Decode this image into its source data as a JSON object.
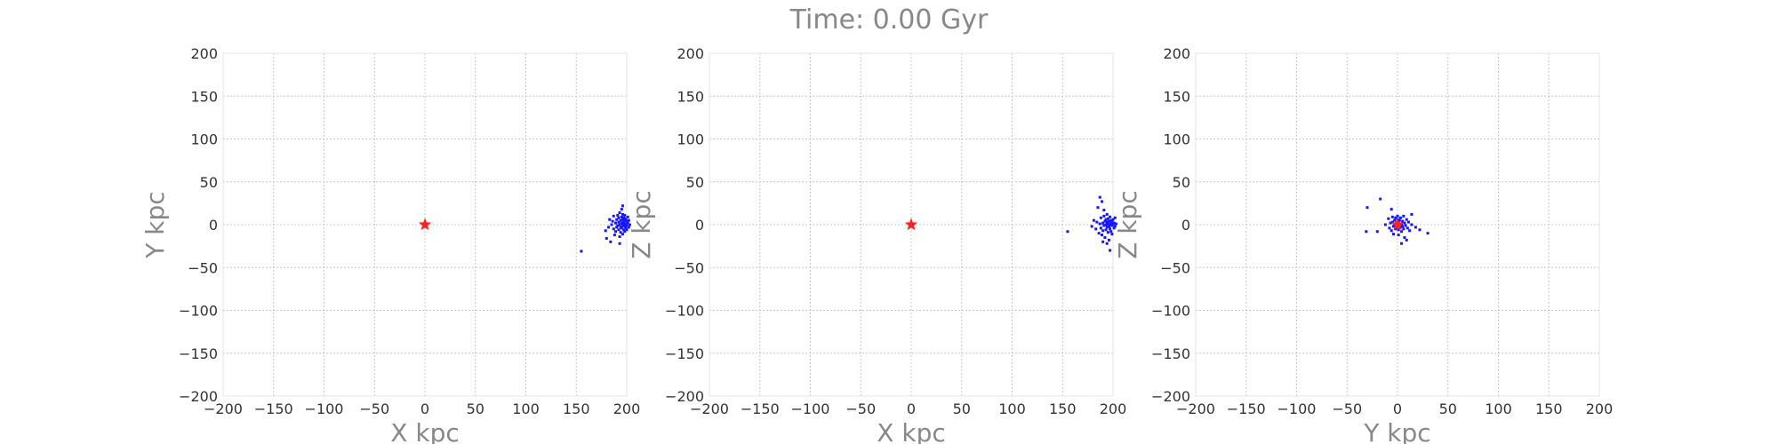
{
  "figure": {
    "title": "Time: 0.00 Gyr"
  },
  "colors": {
    "points": "#1515ff",
    "center_marker": "#ff2020",
    "grid": "#c8c8c8",
    "label_text": "#888888",
    "tick_text": "#333333"
  },
  "chart_data": [
    {
      "type": "scatter",
      "xlabel": "X kpc",
      "ylabel": "Y kpc",
      "xlim": [
        -200,
        200
      ],
      "ylim": [
        -200,
        200
      ],
      "xticks": [
        "−200",
        "−150",
        "−100",
        "−50",
        "0",
        "50",
        "100",
        "150",
        "200"
      ],
      "yticks": [
        "200",
        "150",
        "100",
        "50",
        "0",
        "−50",
        "−100",
        "−150",
        "−200"
      ],
      "grid": true,
      "center_marker": {
        "shape": "star",
        "x": 0,
        "y": 0
      },
      "points": [
        [
          155,
          -31
        ],
        [
          179,
          -7
        ],
        [
          180,
          -16
        ],
        [
          182,
          -3
        ],
        [
          183,
          6
        ],
        [
          184,
          -20
        ],
        [
          185,
          0
        ],
        [
          186,
          4
        ],
        [
          187,
          -5
        ],
        [
          187,
          10
        ],
        [
          188,
          -12
        ],
        [
          189,
          2
        ],
        [
          189,
          -8
        ],
        [
          190,
          6
        ],
        [
          190,
          -3
        ],
        [
          191,
          11
        ],
        [
          191,
          -1
        ],
        [
          192,
          3
        ],
        [
          192,
          -6
        ],
        [
          192,
          8
        ],
        [
          193,
          -14
        ],
        [
          193,
          0
        ],
        [
          193,
          14
        ],
        [
          194,
          5
        ],
        [
          194,
          -3
        ],
        [
          194,
          -9
        ],
        [
          195,
          2
        ],
        [
          195,
          9
        ],
        [
          195,
          -4
        ],
        [
          195,
          18
        ],
        [
          196,
          -1
        ],
        [
          196,
          6
        ],
        [
          196,
          -11
        ],
        [
          196,
          12
        ],
        [
          197,
          3
        ],
        [
          197,
          -6
        ],
        [
          197,
          8
        ],
        [
          197,
          0
        ],
        [
          198,
          -2
        ],
        [
          198,
          5
        ],
        [
          198,
          -8
        ],
        [
          198,
          11
        ],
        [
          199,
          1
        ],
        [
          199,
          -4
        ],
        [
          199,
          7
        ],
        [
          200,
          -1
        ],
        [
          200,
          4
        ],
        [
          200,
          -6
        ],
        [
          201,
          2
        ],
        [
          201,
          9
        ],
        [
          202,
          -3
        ],
        [
          202,
          5
        ],
        [
          203,
          0
        ],
        [
          196,
          22
        ],
        [
          193,
          -22
        ]
      ]
    },
    {
      "type": "scatter",
      "xlabel": "X kpc",
      "ylabel": "Z kpc",
      "xlim": [
        -200,
        200
      ],
      "ylim": [
        -200,
        200
      ],
      "xticks": [
        "−200",
        "−150",
        "−100",
        "−50",
        "0",
        "50",
        "100",
        "150",
        "200"
      ],
      "yticks": [
        "200",
        "150",
        "100",
        "50",
        "0",
        "−50",
        "−100",
        "−150",
        "−200"
      ],
      "grid": true,
      "center_marker": {
        "shape": "star",
        "x": 0,
        "y": 0
      },
      "points": [
        [
          155,
          -8
        ],
        [
          179,
          -2
        ],
        [
          181,
          5
        ],
        [
          183,
          -5
        ],
        [
          184,
          3
        ],
        [
          185,
          20
        ],
        [
          186,
          -10
        ],
        [
          187,
          1
        ],
        [
          188,
          8
        ],
        [
          188,
          -4
        ],
        [
          189,
          -12
        ],
        [
          190,
          2
        ],
        [
          190,
          -7
        ],
        [
          191,
          10
        ],
        [
          191,
          -1
        ],
        [
          192,
          4
        ],
        [
          192,
          -15
        ],
        [
          193,
          0
        ],
        [
          193,
          6
        ],
        [
          193,
          -6
        ],
        [
          194,
          3
        ],
        [
          194,
          12
        ],
        [
          194,
          -3
        ],
        [
          195,
          -9
        ],
        [
          195,
          1
        ],
        [
          195,
          7
        ],
        [
          196,
          -2
        ],
        [
          196,
          4
        ],
        [
          196,
          -18
        ],
        [
          197,
          0
        ],
        [
          197,
          9
        ],
        [
          197,
          -5
        ],
        [
          198,
          2
        ],
        [
          198,
          -8
        ],
        [
          198,
          5
        ],
        [
          199,
          -1
        ],
        [
          199,
          3
        ],
        [
          199,
          -11
        ],
        [
          200,
          6
        ],
        [
          200,
          0
        ],
        [
          201,
          -4
        ],
        [
          201,
          2
        ],
        [
          202,
          8
        ],
        [
          202,
          -2
        ],
        [
          203,
          1
        ],
        [
          187,
          32
        ],
        [
          189,
          27
        ],
        [
          191,
          17
        ],
        [
          194,
          -22
        ],
        [
          197,
          -30
        ],
        [
          190,
          -20
        ]
      ]
    },
    {
      "type": "scatter",
      "xlabel": "Y kpc",
      "ylabel": "Z kpc",
      "xlim": [
        -200,
        200
      ],
      "ylim": [
        -200,
        200
      ],
      "xticks": [
        "−200",
        "−150",
        "−100",
        "−50",
        "0",
        "50",
        "100",
        "150",
        "200"
      ],
      "yticks": [
        "200",
        "150",
        "100",
        "50",
        "0",
        "−50",
        "−100",
        "−150",
        "−200"
      ],
      "grid": true,
      "center_marker": {
        "shape": "star",
        "x": 0,
        "y": 0
      },
      "points": [
        [
          -31,
          -8
        ],
        [
          -30,
          20
        ],
        [
          -20,
          -8
        ],
        [
          -17,
          30
        ],
        [
          -12,
          0
        ],
        [
          -9,
          7
        ],
        [
          -8,
          -4
        ],
        [
          -7,
          2
        ],
        [
          -6,
          -7
        ],
        [
          -5,
          9
        ],
        [
          -5,
          3
        ],
        [
          -4,
          -2
        ],
        [
          -4,
          -11
        ],
        [
          -3,
          5
        ],
        [
          -3,
          0
        ],
        [
          -2,
          -5
        ],
        [
          -2,
          8
        ],
        [
          -1,
          2
        ],
        [
          -1,
          -3
        ],
        [
          0,
          6
        ],
        [
          0,
          -1
        ],
        [
          0,
          10
        ],
        [
          1,
          -6
        ],
        [
          1,
          3
        ],
        [
          1,
          -12
        ],
        [
          2,
          0
        ],
        [
          2,
          5
        ],
        [
          3,
          -3
        ],
        [
          3,
          8
        ],
        [
          4,
          1
        ],
        [
          4,
          -8
        ],
        [
          5,
          4
        ],
        [
          5,
          -2
        ],
        [
          6,
          10
        ],
        [
          6,
          -5
        ],
        [
          7,
          2
        ],
        [
          7,
          -15
        ],
        [
          8,
          -1
        ],
        [
          9,
          6
        ],
        [
          10,
          -4
        ],
        [
          11,
          3
        ],
        [
          12,
          -7
        ],
        [
          14,
          0
        ],
        [
          14,
          12
        ],
        [
          18,
          -3
        ],
        [
          22,
          -6
        ],
        [
          30,
          -10
        ],
        [
          -6,
          18
        ],
        [
          4,
          -22
        ],
        [
          9,
          -18
        ]
      ]
    }
  ]
}
